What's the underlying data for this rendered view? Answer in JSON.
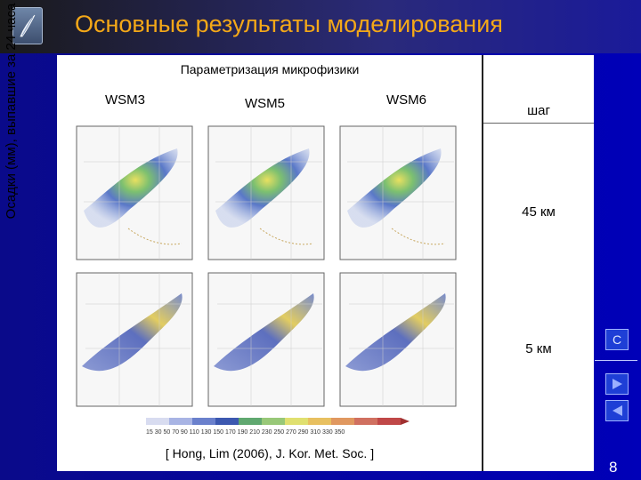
{
  "slide": {
    "title": "Основные результаты моделирования",
    "subtitle": "Параметризация микрофизики",
    "columns": [
      "WSM3",
      "WSM5",
      "WSM6"
    ],
    "y_label": "Осадки (мм), выпавшие за 24 часа",
    "step_header": "шаг",
    "rows": [
      {
        "step": "45  км"
      },
      {
        "step": "5  км"
      }
    ],
    "citation": "[ Hong, Lim (2006), J. Kor. Met. Soc. ]",
    "page_number": "8",
    "nav": {
      "c_label": "C"
    },
    "colorbar_ticks": "15  30  50  70  90  110 130 150 170 190 210 230 250 270 290 310 330 350"
  },
  "colors": {
    "title": "#f4a818",
    "background": "#0000b8",
    "panel": "#ffffff",
    "nav_button": "#1e3fd6"
  }
}
